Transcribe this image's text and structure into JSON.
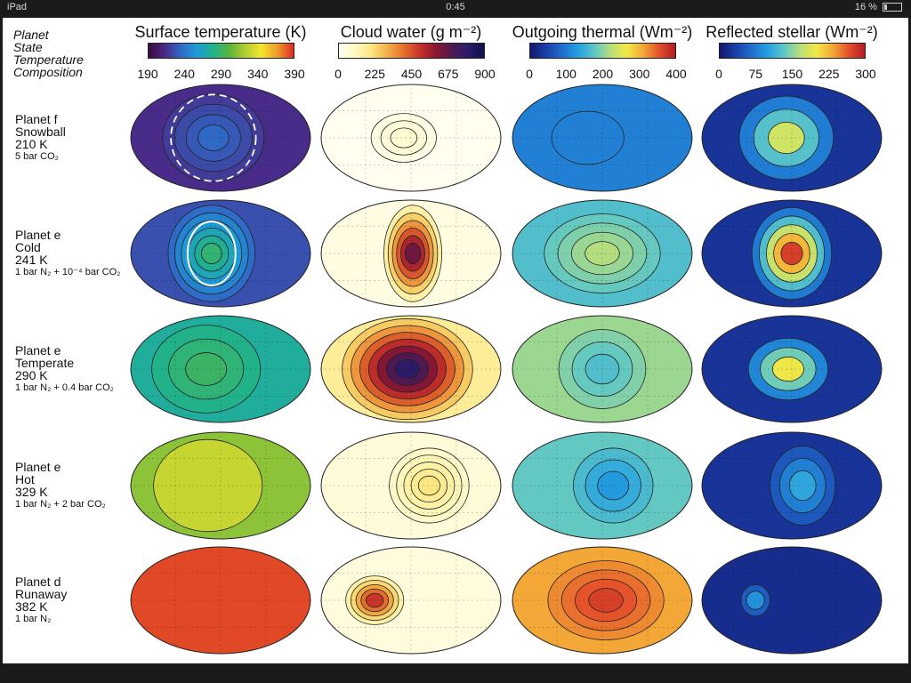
{
  "status": {
    "left": "iPad",
    "time": "0:45",
    "battery": "16 %",
    "battery_level": 0.16
  },
  "figure": {
    "top_left_labels": [
      "Planet",
      "State",
      "Temperature",
      "Composition"
    ],
    "columns": [
      {
        "title": "Surface temperature (K)",
        "ticks": [
          "190",
          "240",
          "290",
          "340",
          "390"
        ],
        "scale": "surface",
        "stops": [
          "#3a0b3c",
          "#4b2784",
          "#2f69c7",
          "#1e9bd6",
          "#20b28b",
          "#58b43d",
          "#b2cd34",
          "#f3e62b",
          "#ef9a2a",
          "#dc2b25"
        ]
      },
      {
        "title": "Cloud water (g m⁻²)",
        "ticks": [
          "0",
          "225",
          "450",
          "675",
          "900"
        ],
        "scale": "cloud",
        "stops": [
          "#fffff4",
          "#fff8c0",
          "#fbe680",
          "#f3b04a",
          "#e5722c",
          "#c8322a",
          "#8b1730",
          "#501a50",
          "#2a1b6a",
          "#101048"
        ]
      },
      {
        "title": "Outgoing thermal (Wm⁻²)",
        "ticks": [
          "0",
          "100",
          "200",
          "300",
          "400"
        ],
        "scale": "olr",
        "stops": [
          "#121770",
          "#1a3fa8",
          "#1f6fce",
          "#25a0e0",
          "#5fc7c6",
          "#b8df7a",
          "#f1e845",
          "#f3a936",
          "#e3502a",
          "#b21c24"
        ]
      },
      {
        "title": "Reflected stellar (Wm⁻²)",
        "ticks": [
          "0",
          "75",
          "150",
          "225",
          "300"
        ],
        "scale": "olr",
        "stops": [
          "#121770",
          "#1a3fa8",
          "#1f6fce",
          "#25a0e0",
          "#5fc7c6",
          "#b8df7a",
          "#f1e845",
          "#f3a936",
          "#e3502a",
          "#b21c24"
        ]
      }
    ],
    "rows": [
      {
        "planet": "Planet f",
        "state": "Snowball",
        "temperature": "210 K",
        "composition": "5 bar CO₂",
        "maps": [
          {
            "bg": 0.12,
            "center": 0.22,
            "cx": 0.46,
            "rx": 0.26,
            "ry": 0.38,
            "contours": 4,
            "dashed_white": true
          },
          {
            "bg": 0.01,
            "center": 0.08,
            "cx": 0.46,
            "rx": 0.16,
            "ry": 0.2,
            "contours": 3
          },
          {
            "bg": 0.26,
            "center": 0.26,
            "cx": 0.42,
            "rx": 0.18,
            "ry": 0.22,
            "contours": 1
          },
          {
            "bg": 0.08,
            "center": 0.6,
            "cx": 0.47,
            "rx": 0.24,
            "ry": 0.36,
            "contours": 3
          }
        ]
      },
      {
        "planet": "Planet e",
        "state": "Cold",
        "temperature": "241 K",
        "composition": "1 bar N₂ + 10⁻⁴ bar CO₂",
        "maps": [
          {
            "bg": 0.18,
            "center": 0.48,
            "cx": 0.45,
            "rx": 0.22,
            "ry": 0.42,
            "contours": 6,
            "white_ring": true
          },
          {
            "bg": 0.04,
            "center": 0.72,
            "cx": 0.51,
            "rx": 0.14,
            "ry": 0.42,
            "contours": 6
          },
          {
            "bg": 0.42,
            "center": 0.55,
            "cx": 0.5,
            "rx": 0.3,
            "ry": 0.34,
            "contours": 4
          },
          {
            "bg": 0.08,
            "center": 0.92,
            "cx": 0.5,
            "rx": 0.2,
            "ry": 0.4,
            "contours": 5
          }
        ]
      },
      {
        "planet": "Planet e",
        "state": "Temperate",
        "temperature": "290 K",
        "composition": "1 bar N₂ + 0.4 bar CO₂",
        "maps": [
          {
            "bg": 0.42,
            "center": 0.5,
            "cx": 0.42,
            "rx": 0.28,
            "ry": 0.38,
            "contours": 3
          },
          {
            "bg": 0.18,
            "center": 0.88,
            "cx": 0.48,
            "rx": 0.34,
            "ry": 0.44,
            "contours": 7
          },
          {
            "bg": 0.52,
            "center": 0.42,
            "cx": 0.5,
            "rx": 0.22,
            "ry": 0.34,
            "contours": 3
          },
          {
            "bg": 0.08,
            "center": 0.66,
            "cx": 0.48,
            "rx": 0.2,
            "ry": 0.26,
            "contours": 3
          }
        ]
      },
      {
        "planet": "Planet e",
        "state": "Hot",
        "temperature": "329 K",
        "composition": "1 bar N₂ + 2 bar CO₂",
        "maps": [
          {
            "bg": 0.62,
            "center": 0.7,
            "cx": 0.43,
            "rx": 0.28,
            "ry": 0.4,
            "contours": 1
          },
          {
            "bg": 0.06,
            "center": 0.22,
            "cx": 0.6,
            "rx": 0.2,
            "ry": 0.32,
            "contours": 5
          },
          {
            "bg": 0.45,
            "center": 0.32,
            "cx": 0.56,
            "rx": 0.2,
            "ry": 0.32,
            "contours": 3
          },
          {
            "bg": 0.08,
            "center": 0.35,
            "cx": 0.56,
            "rx": 0.16,
            "ry": 0.34,
            "contours": 3
          }
        ]
      },
      {
        "planet": "Planet d",
        "state": "Runaway",
        "temperature": "382 K",
        "composition": "1 bar N₂",
        "maps": [
          {
            "bg": 0.97,
            "center": 0.97,
            "cx": 0.5,
            "rx": 0.2,
            "ry": 0.3,
            "contours": 0
          },
          {
            "bg": 0.05,
            "center": 0.55,
            "cx": 0.3,
            "rx": 0.14,
            "ry": 0.2,
            "contours": 5
          },
          {
            "bg": 0.78,
            "center": 0.92,
            "cx": 0.52,
            "rx": 0.3,
            "ry": 0.34,
            "contours": 4
          },
          {
            "bg": 0.06,
            "center": 0.3,
            "cx": 0.3,
            "rx": 0.06,
            "ry": 0.12,
            "contours": 2
          }
        ]
      }
    ]
  }
}
